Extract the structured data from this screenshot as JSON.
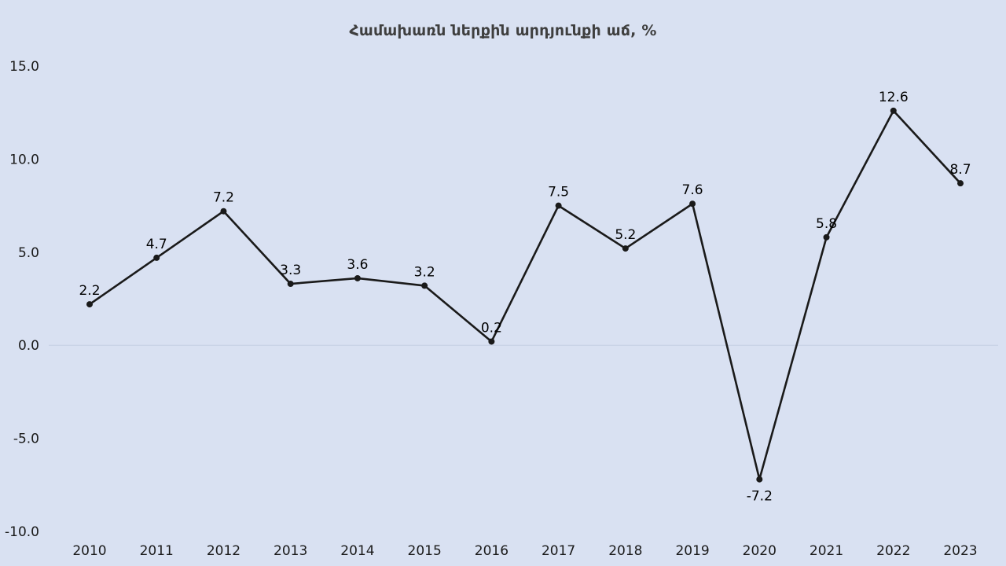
{
  "page": {
    "background_color": "#d9e1f2"
  },
  "chart_data": {
    "type": "line",
    "title": "Համախառն ներքին արդյունքի աճ, %",
    "categories": [
      "2010",
      "2011",
      "2012",
      "2013",
      "2014",
      "2015",
      "2016",
      "2017",
      "2018",
      "2019",
      "2020",
      "2021",
      "2022",
      "2023"
    ],
    "values": [
      2.2,
      4.7,
      7.2,
      3.3,
      3.6,
      3.2,
      0.2,
      7.5,
      5.2,
      7.6,
      -7.2,
      5.8,
      12.6,
      8.7
    ],
    "labels": [
      "2.2",
      "4.7",
      "7.2",
      "3.3",
      "3.6",
      "3.2",
      "0.2",
      "7.5",
      "5.2",
      "7.6",
      "-7.2",
      "5.8",
      "12.6",
      "8.7"
    ],
    "label_positions": [
      "above",
      "above",
      "above",
      "above",
      "above",
      "above",
      "above",
      "above",
      "above",
      "above",
      "below",
      "above",
      "above",
      "above"
    ],
    "ylim": [
      -10,
      15
    ],
    "yticks": [
      15.0,
      10.0,
      5.0,
      0.0,
      -5.0,
      -10.0
    ],
    "xlabel": "",
    "ylabel": "",
    "grid": "zero-line-only",
    "legend": "none",
    "line_color": "#1a1a1a",
    "marker_color": "#1a1a1a",
    "zero_line_color": "#c6cfe3",
    "label_color": "#000000",
    "highlight_last_label_color": "#ff0000"
  }
}
